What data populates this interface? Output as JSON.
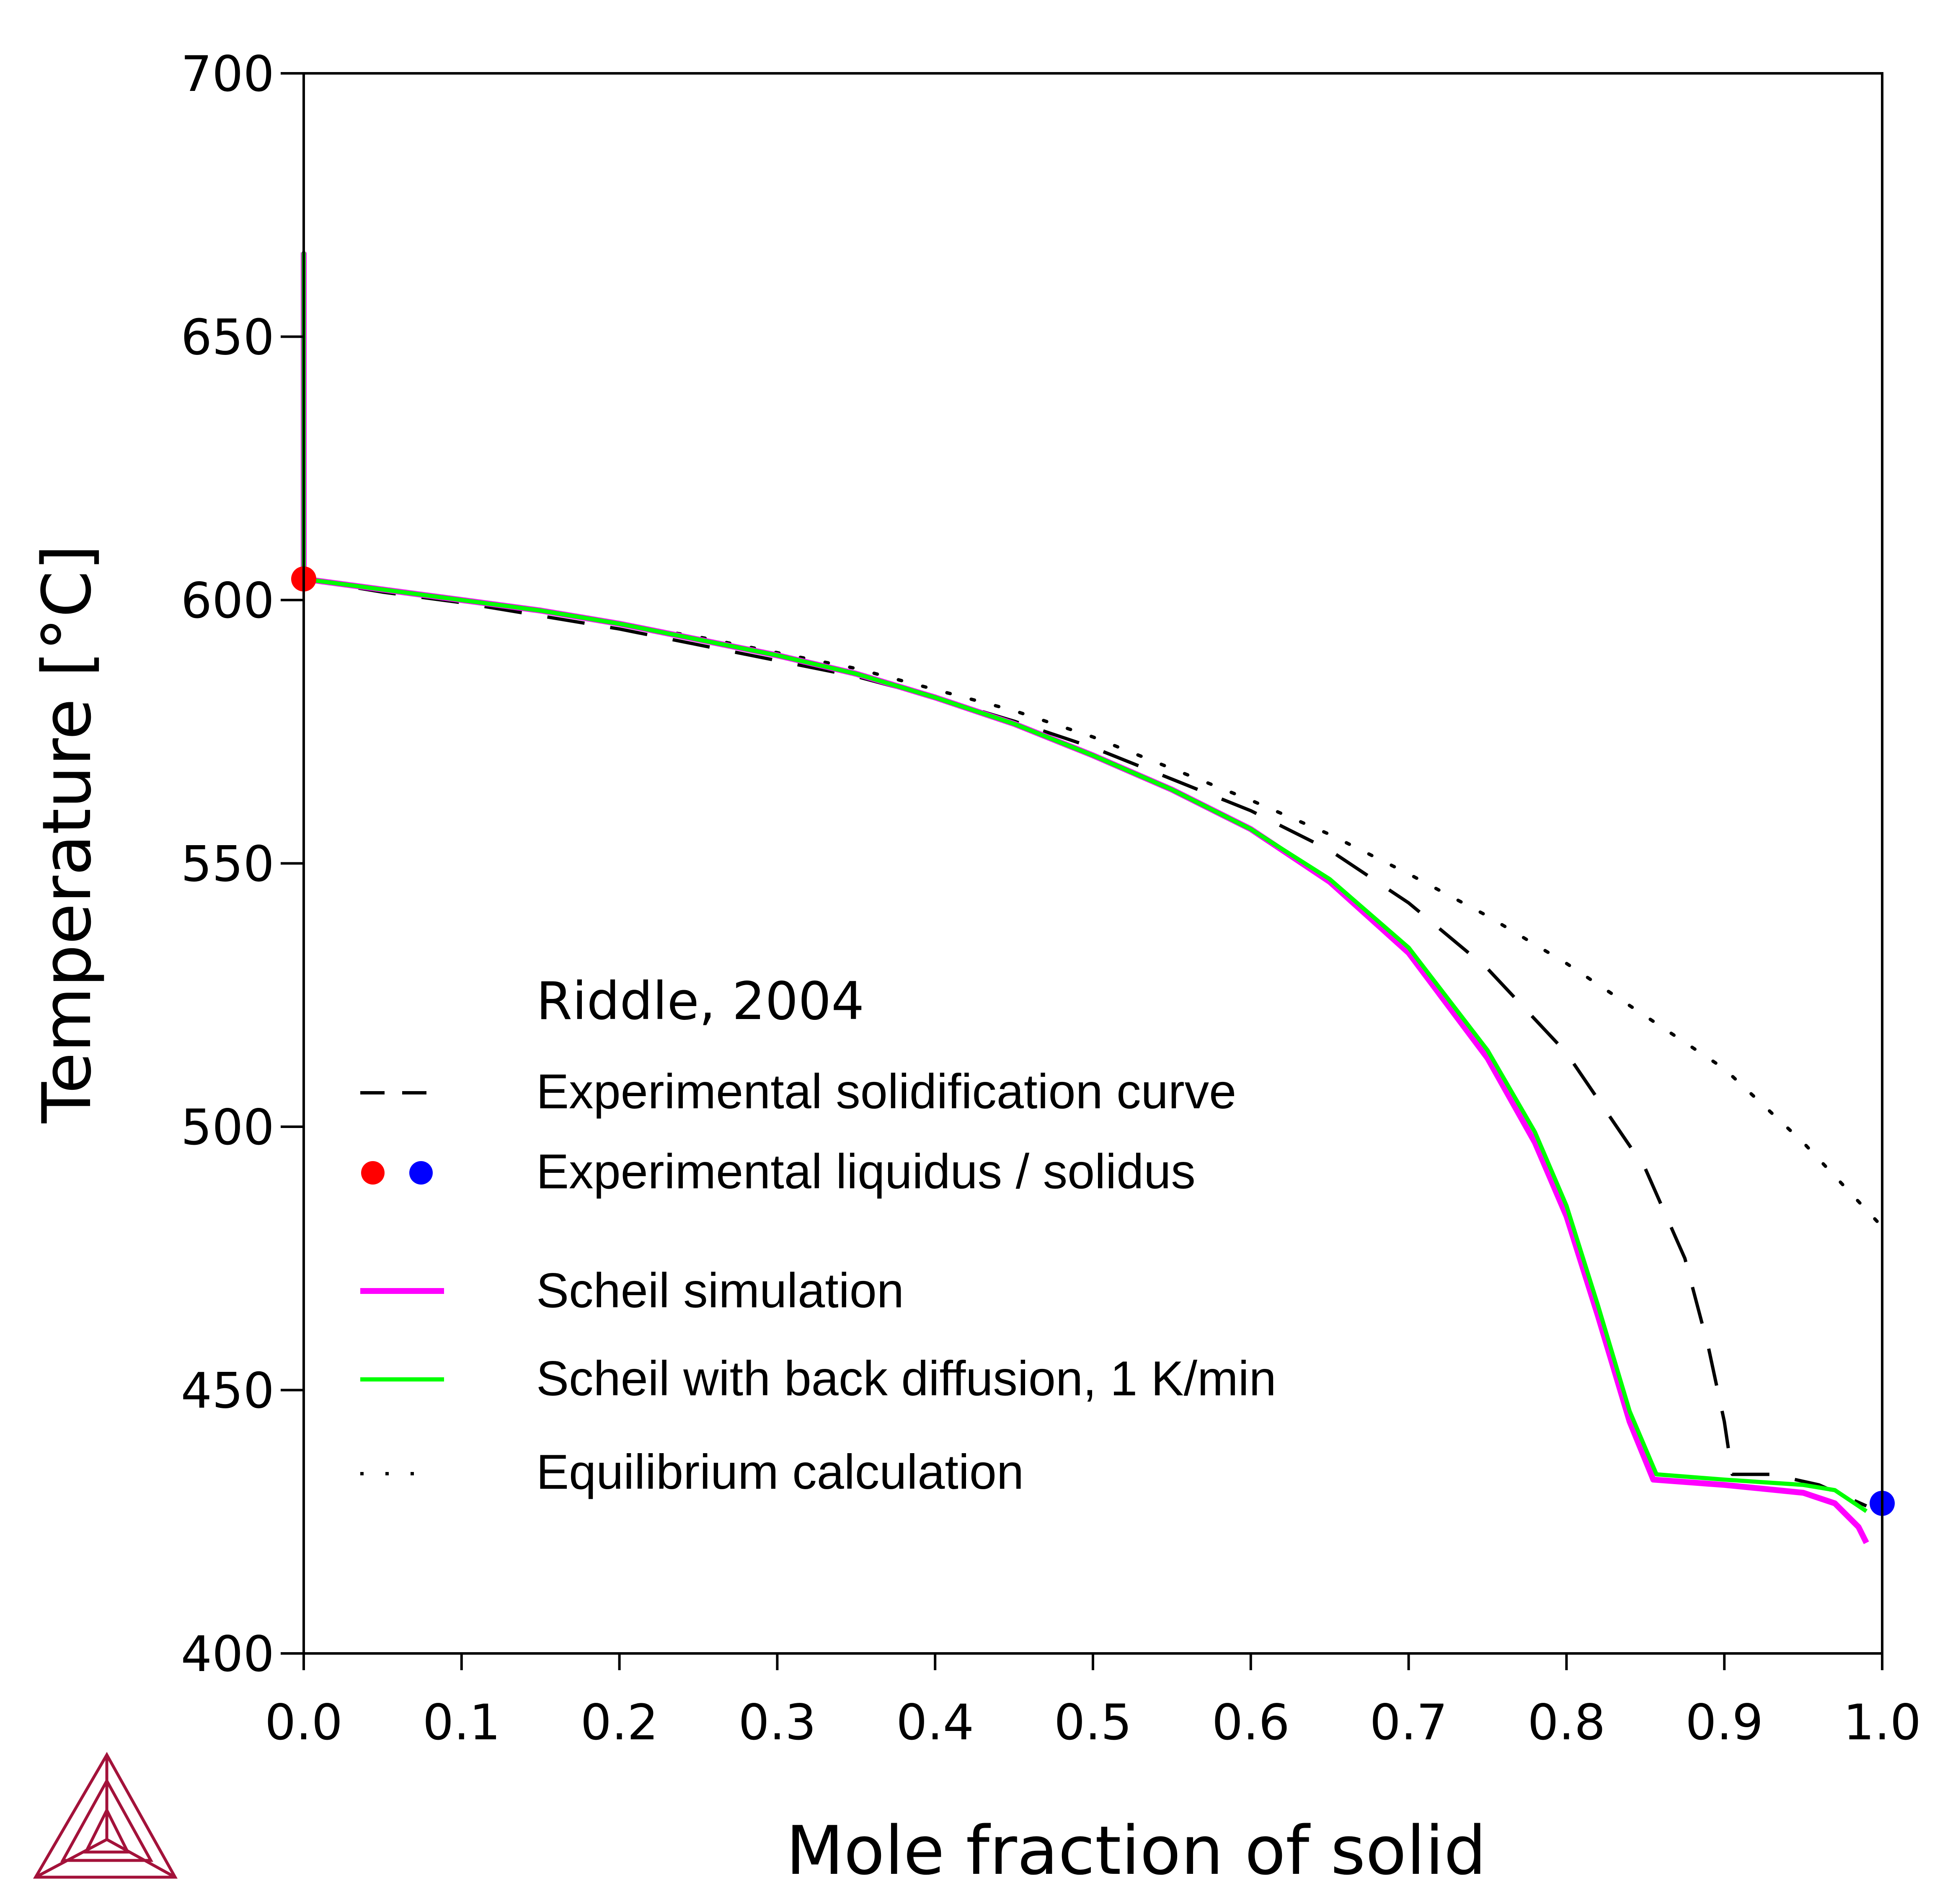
{
  "chart_data": {
    "type": "line",
    "xlabel": "Mole fraction of solid",
    "ylabel": "Temperature [°C]",
    "xlim": [
      0,
      1
    ],
    "ylim": [
      400,
      700
    ],
    "x_ticks": [
      "0.0",
      "0.1",
      "0.2",
      "0.3",
      "0.4",
      "0.5",
      "0.6",
      "0.7",
      "0.8",
      "0.9",
      "1.0"
    ],
    "y_ticks": [
      "400",
      "450",
      "500",
      "550",
      "600",
      "650",
      "700"
    ],
    "grid": false,
    "legend_position": "center-left",
    "legend_title": "Riddle, 2004",
    "series": [
      {
        "name": "Experimental solidification curve",
        "style": "dashed",
        "color": "#000000",
        "points": [
          [
            0,
            666
          ],
          [
            0,
            604
          ],
          [
            0.05,
            601.5
          ],
          [
            0.1,
            599.5
          ],
          [
            0.15,
            597
          ],
          [
            0.2,
            594.5
          ],
          [
            0.25,
            591.5
          ],
          [
            0.3,
            588.5
          ],
          [
            0.35,
            585.5
          ],
          [
            0.4,
            581.5
          ],
          [
            0.45,
            577
          ],
          [
            0.5,
            572
          ],
          [
            0.55,
            566
          ],
          [
            0.6,
            560
          ],
          [
            0.65,
            552.5
          ],
          [
            0.7,
            542.5
          ],
          [
            0.75,
            530
          ],
          [
            0.8,
            514
          ],
          [
            0.85,
            492
          ],
          [
            0.875,
            475
          ],
          [
            0.89,
            458
          ],
          [
            0.9,
            444
          ],
          [
            0.905,
            434
          ],
          [
            0.93,
            434
          ],
          [
            0.96,
            432
          ],
          [
            0.99,
            428
          ]
        ]
      },
      {
        "name": "Experimental liquidus / solidus",
        "style": "markers",
        "points": [
          {
            "x": 0.0,
            "y": 604,
            "color": "#ff0000"
          },
          {
            "x": 1.0,
            "y": 428.5,
            "color": "#0000ff"
          }
        ]
      },
      {
        "name": "Scheil simulation",
        "style": "solid-thick",
        "color": "#ff00ff",
        "points": [
          [
            0,
            666
          ],
          [
            0,
            604
          ],
          [
            0.05,
            602
          ],
          [
            0.1,
            600
          ],
          [
            0.15,
            598
          ],
          [
            0.2,
            595.5
          ],
          [
            0.25,
            592.5
          ],
          [
            0.3,
            589.5
          ],
          [
            0.35,
            586
          ],
          [
            0.4,
            581.5
          ],
          [
            0.45,
            576.5
          ],
          [
            0.5,
            570.5
          ],
          [
            0.55,
            564
          ],
          [
            0.6,
            556.5
          ],
          [
            0.65,
            546.5
          ],
          [
            0.7,
            533
          ],
          [
            0.75,
            513
          ],
          [
            0.78,
            497
          ],
          [
            0.8,
            483
          ],
          [
            0.82,
            464
          ],
          [
            0.84,
            444
          ],
          [
            0.855,
            433
          ],
          [
            0.9,
            432
          ],
          [
            0.95,
            430.5
          ],
          [
            0.97,
            428.5
          ],
          [
            0.985,
            424
          ],
          [
            0.99,
            421
          ]
        ]
      },
      {
        "name": "Scheil with back diffusion, 1 K/min",
        "style": "solid",
        "color": "#00ff00",
        "points": [
          [
            0,
            666
          ],
          [
            0,
            604
          ],
          [
            0.05,
            602
          ],
          [
            0.1,
            600
          ],
          [
            0.15,
            598
          ],
          [
            0.2,
            595.5
          ],
          [
            0.25,
            592.5
          ],
          [
            0.3,
            589.5
          ],
          [
            0.35,
            586
          ],
          [
            0.4,
            581.5
          ],
          [
            0.45,
            576.5
          ],
          [
            0.5,
            570.5
          ],
          [
            0.55,
            564
          ],
          [
            0.6,
            556.5
          ],
          [
            0.65,
            547
          ],
          [
            0.7,
            534
          ],
          [
            0.75,
            514.5
          ],
          [
            0.78,
            499
          ],
          [
            0.8,
            485
          ],
          [
            0.82,
            466
          ],
          [
            0.84,
            446
          ],
          [
            0.857,
            434
          ],
          [
            0.9,
            433
          ],
          [
            0.95,
            432
          ],
          [
            0.97,
            431
          ],
          [
            0.99,
            427
          ]
        ]
      },
      {
        "name": "Equilibrium calculation",
        "style": "dotted",
        "color": "#000000",
        "points": [
          [
            0,
            666
          ],
          [
            0,
            604
          ],
          [
            0.05,
            602
          ],
          [
            0.1,
            600
          ],
          [
            0.15,
            598
          ],
          [
            0.2,
            595.5
          ],
          [
            0.25,
            593
          ],
          [
            0.3,
            590
          ],
          [
            0.35,
            587
          ],
          [
            0.4,
            583
          ],
          [
            0.45,
            579
          ],
          [
            0.5,
            574
          ],
          [
            0.55,
            568
          ],
          [
            0.6,
            562
          ],
          [
            0.65,
            555.5
          ],
          [
            0.7,
            548
          ],
          [
            0.75,
            540
          ],
          [
            0.8,
            531
          ],
          [
            0.85,
            521
          ],
          [
            0.9,
            511
          ],
          [
            0.95,
            497
          ],
          [
            1.0,
            481
          ]
        ]
      }
    ]
  },
  "logo": "thermo-calc-triangle-icon",
  "colors": {
    "red_marker": "#ff0000",
    "blue_marker": "#0000ff",
    "scheil": "#ff00ff",
    "back_diffusion": "#00ff00",
    "logo": "#a3123a"
  }
}
